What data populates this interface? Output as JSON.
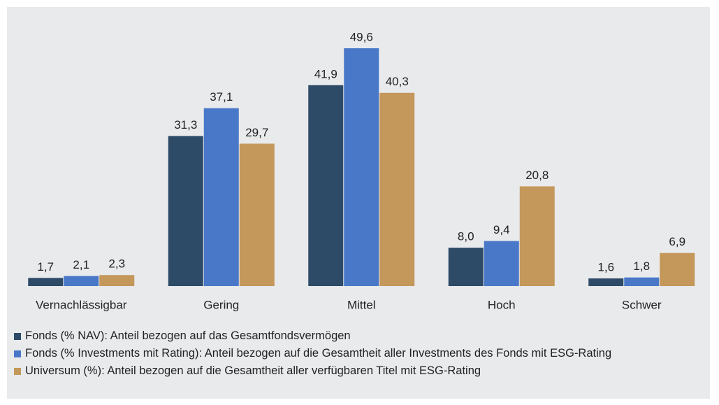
{
  "chart_data": {
    "type": "bar",
    "categories": [
      "Vernachlässigbar",
      "Gering",
      "Mittel",
      "Hoch",
      "Schwer"
    ],
    "series": [
      {
        "name": "Fonds (% NAV): Anteil bezogen auf das Gesamtfondsvermögen",
        "color": "#2d4a67",
        "values": [
          1.7,
          31.3,
          41.9,
          8.0,
          1.6
        ],
        "value_labels": [
          "1,7",
          "31,3",
          "41,9",
          "8,0",
          "1,6"
        ]
      },
      {
        "name": "Fonds (% Investments mit Rating): Anteil bezogen auf die Gesamtheit aller Investments des Fonds mit ESG-Rating",
        "color": "#4a78c9",
        "values": [
          2.1,
          37.1,
          49.6,
          9.4,
          1.8
        ],
        "value_labels": [
          "2,1",
          "37,1",
          "49,6",
          "9,4",
          "1,8"
        ]
      },
      {
        "name": "Universum (%): Anteil bezogen auf die Gesamtheit aller verfügbaren Titel mit ESG-Rating",
        "color": "#c4975a",
        "values": [
          2.3,
          29.7,
          40.3,
          20.8,
          6.9
        ],
        "value_labels": [
          "2,3",
          "29,7",
          "40,3",
          "20,8",
          "6,9"
        ]
      }
    ]
  }
}
